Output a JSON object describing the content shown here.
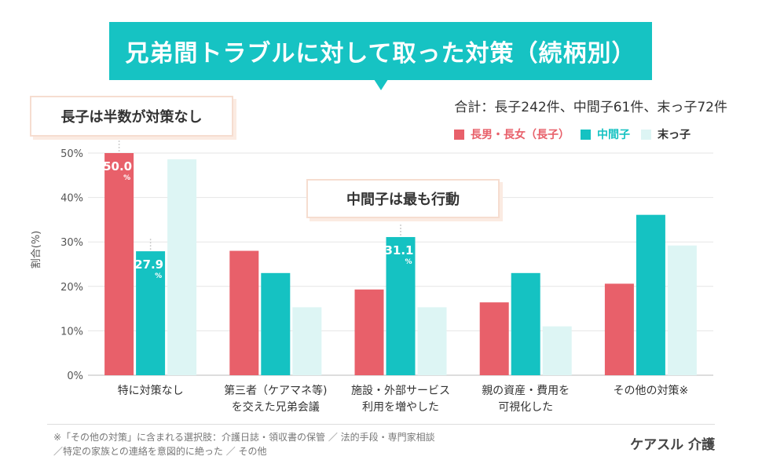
{
  "title": "兄弟間トラブルに対して取った対策（続柄別）",
  "total_note": "合計：長子242件、中間子61件、末っ子72件",
  "legend": [
    {
      "label": "長男・長女（長子）",
      "color": "#e8606a"
    },
    {
      "label": "中間子",
      "color": "#15c2c2"
    },
    {
      "label": "末っ子",
      "color": "#ddf5f4"
    }
  ],
  "callouts": {
    "eldest": "長子は半数が対策なし",
    "middle": "中間子は最も行動"
  },
  "chart_data": {
    "type": "bar",
    "ylabel": "割合(%)",
    "ylim": [
      0,
      50
    ],
    "yticks": [
      "0%",
      "10%",
      "20%",
      "30%",
      "40%",
      "50%"
    ],
    "categories": [
      [
        "特に対策なし"
      ],
      [
        "第三者（ケアマネ等)",
        "を交えた兄弟会議"
      ],
      [
        "施設・外部サービス",
        "利用を増やした"
      ],
      [
        "親の資産・費用を",
        "可視化した"
      ],
      [
        "その他の対策※"
      ]
    ],
    "series": [
      {
        "name": "長男・長女（長子）",
        "color": "#e8606a",
        "values": [
          50.0,
          28.0,
          19.3,
          16.4,
          20.6
        ]
      },
      {
        "name": "中間子",
        "color": "#15c2c2",
        "values": [
          27.9,
          23.0,
          31.1,
          23.0,
          36.1
        ]
      },
      {
        "name": "末っ子",
        "color": "#ddf5f4",
        "values": [
          48.6,
          15.3,
          15.3,
          11.0,
          29.2
        ]
      }
    ],
    "data_labels": [
      {
        "series": 0,
        "category": 0,
        "value": "50.0",
        "unit": "%"
      },
      {
        "series": 1,
        "category": 0,
        "value": "27.9",
        "unit": "%"
      },
      {
        "series": 1,
        "category": 2,
        "value": "31.1",
        "unit": "%"
      }
    ],
    "grid": true
  },
  "footnote": {
    "line1": "※「その他の対策」に含まれる選択肢：介護日誌・領収書の保管 ／ 法的手段・専門家相談",
    "line2": "／特定の家族との連絡を意図的に絶った ／ その他"
  },
  "brand": "ケアスル 介護"
}
